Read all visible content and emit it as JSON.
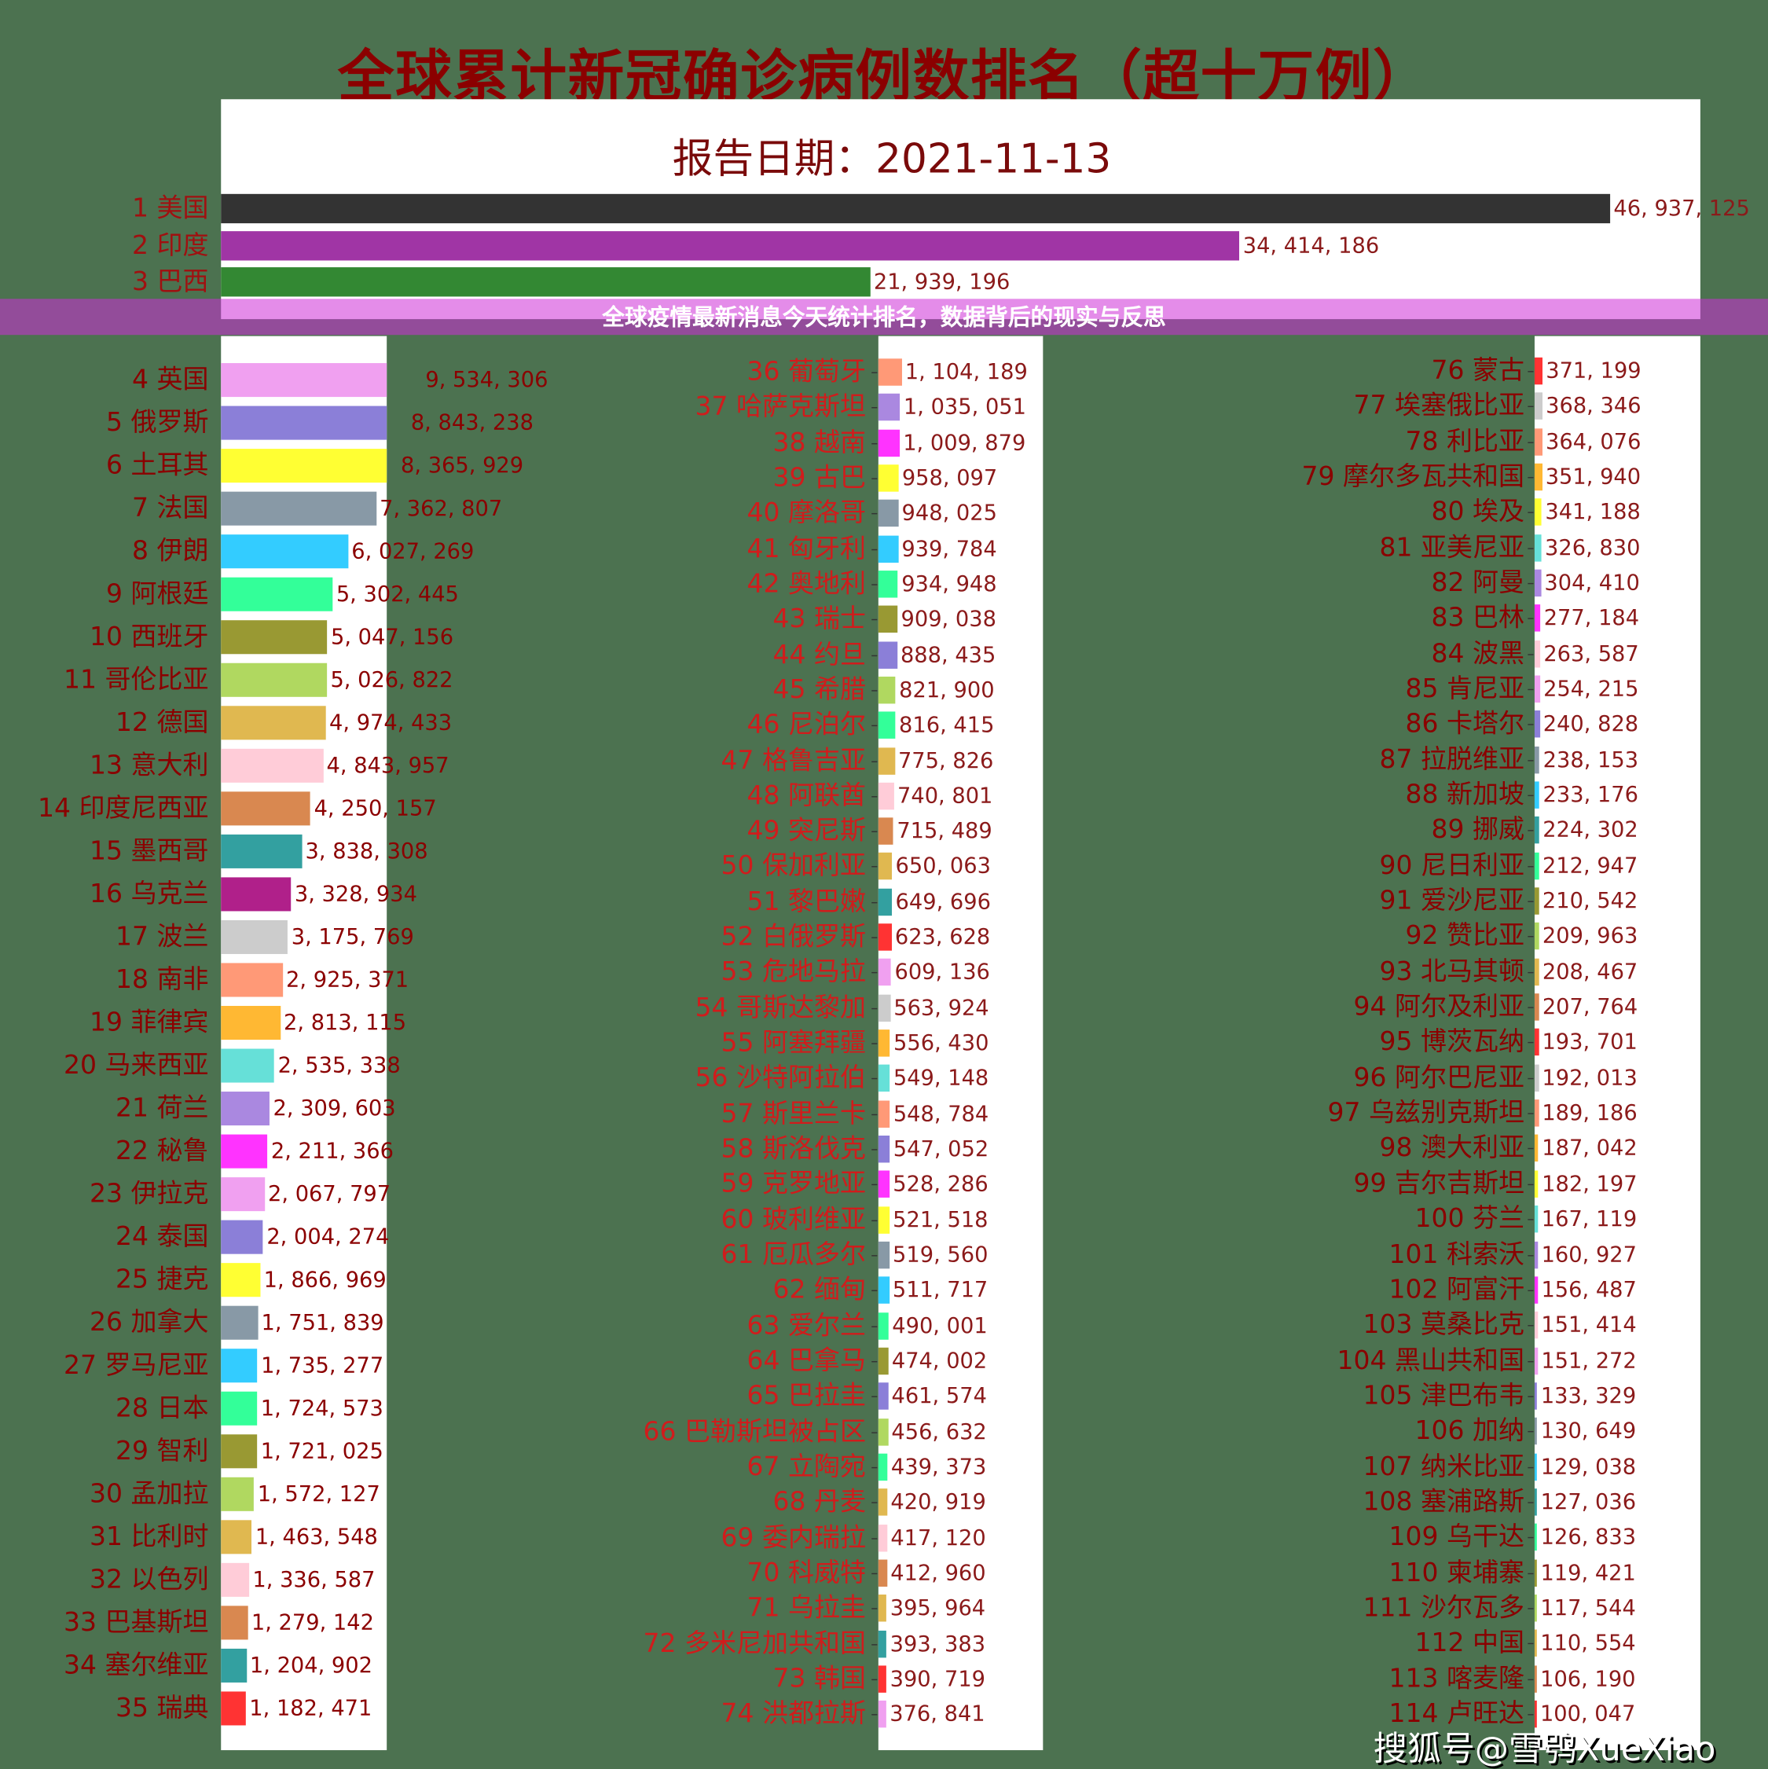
{
  "chart_data": {
    "type": "bar",
    "title": "全球累计新冠确诊病例数排名（超十万例）",
    "subtitle": "报告日期：2021-11-13",
    "orientation": "horizontal",
    "rows": [
      {
        "rank": 1,
        "name": "美国",
        "value": 46937125,
        "color": "#333333"
      },
      {
        "rank": 2,
        "name": "印度",
        "value": 34414186,
        "color": "#a035a5"
      },
      {
        "rank": 3,
        "name": "巴西",
        "value": 21939196,
        "color": "#338833"
      },
      {
        "rank": 4,
        "name": "英国",
        "value": 9534306,
        "color": "#f0a0f0"
      },
      {
        "rank": 5,
        "name": "俄罗斯",
        "value": 8843238,
        "color": "#8b7fd8"
      },
      {
        "rank": 6,
        "name": "土耳其",
        "value": 8365929,
        "color": "#ffff33"
      },
      {
        "rank": 7,
        "name": "法国",
        "value": 7362807,
        "color": "#8899a6"
      },
      {
        "rank": 8,
        "name": "伊朗",
        "value": 6027269,
        "color": "#33ccff"
      },
      {
        "rank": 9,
        "name": "阿根廷",
        "value": 5302445,
        "color": "#33ff99"
      },
      {
        "rank": 10,
        "name": "西班牙",
        "value": 5047156,
        "color": "#999933"
      },
      {
        "rank": 11,
        "name": "哥伦比亚",
        "value": 5026822,
        "color": "#b0d860"
      },
      {
        "rank": 12,
        "name": "德国",
        "value": 4974433,
        "color": "#e0b850"
      },
      {
        "rank": 13,
        "name": "意大利",
        "value": 4843957,
        "color": "#ffccd8"
      },
      {
        "rank": 14,
        "name": "印度尼西亚",
        "value": 4250157,
        "color": "#d98850"
      },
      {
        "rank": 15,
        "name": "墨西哥",
        "value": 3838308,
        "color": "#33a0a0"
      },
      {
        "rank": 16,
        "name": "乌克兰",
        "value": 3328934,
        "color": "#b0208a"
      },
      {
        "rank": 17,
        "name": "波兰",
        "value": 3175769,
        "color": "#cccccc"
      },
      {
        "rank": 18,
        "name": "南非",
        "value": 2925371,
        "color": "#ff9977"
      },
      {
        "rank": 19,
        "name": "菲律宾",
        "value": 2813115,
        "color": "#ffb833"
      },
      {
        "rank": 20,
        "name": "马来西亚",
        "value": 2535338,
        "color": "#66e0d8"
      },
      {
        "rank": 21,
        "name": "荷兰",
        "value": 2309603,
        "color": "#aa88e0"
      },
      {
        "rank": 22,
        "name": "秘鲁",
        "value": 2211366,
        "color": "#ff33ff"
      },
      {
        "rank": 23,
        "name": "伊拉克",
        "value": 2067797,
        "color": "#f0a0f0"
      },
      {
        "rank": 24,
        "name": "泰国",
        "value": 2004274,
        "color": "#8b7fd8"
      },
      {
        "rank": 25,
        "name": "捷克",
        "value": 1866969,
        "color": "#ffff33"
      },
      {
        "rank": 26,
        "name": "加拿大",
        "value": 1751839,
        "color": "#8899a6"
      },
      {
        "rank": 27,
        "name": "罗马尼亚",
        "value": 1735277,
        "color": "#33ccff"
      },
      {
        "rank": 28,
        "name": "日本",
        "value": 1724573,
        "color": "#33ff99"
      },
      {
        "rank": 29,
        "name": "智利",
        "value": 1721025,
        "color": "#999933"
      },
      {
        "rank": 30,
        "name": "孟加拉",
        "value": 1572127,
        "color": "#b0d860"
      },
      {
        "rank": 31,
        "name": "比利时",
        "value": 1463548,
        "color": "#e0b850"
      },
      {
        "rank": 32,
        "name": "以色列",
        "value": 1336587,
        "color": "#ffccd8"
      },
      {
        "rank": 33,
        "name": "巴基斯坦",
        "value": 1279142,
        "color": "#d98850"
      },
      {
        "rank": 34,
        "name": "塞尔维亚",
        "value": 1204902,
        "color": "#33a0a0"
      },
      {
        "rank": 35,
        "name": "瑞典",
        "value": 1182471,
        "color": "#ff3333"
      },
      {
        "rank": 36,
        "name": "葡萄牙",
        "value": 1104189,
        "color": "#ff9977"
      },
      {
        "rank": 37,
        "name": "哈萨克斯坦",
        "value": 1035051,
        "color": "#aa88e0"
      },
      {
        "rank": 38,
        "name": "越南",
        "value": 1009879,
        "color": "#ff33ff"
      },
      {
        "rank": 39,
        "name": "古巴",
        "value": 958097,
        "color": "#ffff33"
      },
      {
        "rank": 40,
        "name": "摩洛哥",
        "value": 948025,
        "color": "#8899a6"
      },
      {
        "rank": 41,
        "name": "匈牙利",
        "value": 939784,
        "color": "#33ccff"
      },
      {
        "rank": 42,
        "name": "奥地利",
        "value": 934948,
        "color": "#33ff99"
      },
      {
        "rank": 43,
        "name": "瑞士",
        "value": 909038,
        "color": "#999933"
      },
      {
        "rank": 44,
        "name": "约旦",
        "value": 888435,
        "color": "#8b7fd8"
      },
      {
        "rank": 45,
        "name": "希腊",
        "value": 821900,
        "color": "#b0d860"
      },
      {
        "rank": 46,
        "name": "尼泊尔",
        "value": 816415,
        "color": "#33ff99"
      },
      {
        "rank": 47,
        "name": "格鲁吉亚",
        "value": 775826,
        "color": "#e0b850"
      },
      {
        "rank": 48,
        "name": "阿联酋",
        "value": 740801,
        "color": "#ffccd8"
      },
      {
        "rank": 49,
        "name": "突尼斯",
        "value": 715489,
        "color": "#d98850"
      },
      {
        "rank": 50,
        "name": "保加利亚",
        "value": 650063,
        "color": "#e0b850"
      },
      {
        "rank": 51,
        "name": "黎巴嫩",
        "value": 649696,
        "color": "#33a0a0"
      },
      {
        "rank": 52,
        "name": "白俄罗斯",
        "value": 623628,
        "color": "#ff3333"
      },
      {
        "rank": 53,
        "name": "危地马拉",
        "value": 609136,
        "color": "#f0a0f0"
      },
      {
        "rank": 54,
        "name": "哥斯达黎加",
        "value": 563924,
        "color": "#cccccc"
      },
      {
        "rank": 55,
        "name": "阿塞拜疆",
        "value": 556430,
        "color": "#ffb833"
      },
      {
        "rank": 56,
        "name": "沙特阿拉伯",
        "value": 549148,
        "color": "#66e0d8"
      },
      {
        "rank": 57,
        "name": "斯里兰卡",
        "value": 548784,
        "color": "#ff9977"
      },
      {
        "rank": 58,
        "name": "斯洛伐克",
        "value": 547052,
        "color": "#8b7fd8"
      },
      {
        "rank": 59,
        "name": "克罗地亚",
        "value": 528286,
        "color": "#ff33ff"
      },
      {
        "rank": 60,
        "name": "玻利维亚",
        "value": 521518,
        "color": "#ffff33"
      },
      {
        "rank": 61,
        "name": "厄瓜多尔",
        "value": 519560,
        "color": "#8899a6"
      },
      {
        "rank": 62,
        "name": "缅甸",
        "value": 511717,
        "color": "#33ccff"
      },
      {
        "rank": 63,
        "name": "爱尔兰",
        "value": 490001,
        "color": "#33ff99"
      },
      {
        "rank": 64,
        "name": "巴拿马",
        "value": 474002,
        "color": "#999933"
      },
      {
        "rank": 65,
        "name": "巴拉圭",
        "value": 461574,
        "color": "#8b7fd8"
      },
      {
        "rank": 66,
        "name": "巴勒斯坦被占区",
        "value": 456632,
        "color": "#b0d860"
      },
      {
        "rank": 67,
        "name": "立陶宛",
        "value": 439373,
        "color": "#33ff99"
      },
      {
        "rank": 68,
        "name": "丹麦",
        "value": 420919,
        "color": "#e0b850"
      },
      {
        "rank": 69,
        "name": "委内瑞拉",
        "value": 417120,
        "color": "#ffccd8"
      },
      {
        "rank": 70,
        "name": "科威特",
        "value": 412960,
        "color": "#d98850"
      },
      {
        "rank": 71,
        "name": "乌拉圭",
        "value": 395964,
        "color": "#e0b850"
      },
      {
        "rank": 72,
        "name": "多米尼加共和国",
        "value": 393383,
        "color": "#33a0a0"
      },
      {
        "rank": 73,
        "name": "韩国",
        "value": 390719,
        "color": "#ff3333"
      },
      {
        "rank": 74,
        "name": "洪都拉斯",
        "value": 376841,
        "color": "#f0a0f0"
      },
      {
        "rank": 76,
        "name": "蒙古",
        "value": 371199,
        "color": "#ff3333"
      },
      {
        "rank": 77,
        "name": "埃塞俄比亚",
        "value": 368346,
        "color": "#cccccc"
      },
      {
        "rank": 78,
        "name": "利比亚",
        "value": 364076,
        "color": "#ff9977"
      },
      {
        "rank": 79,
        "name": "摩尔多瓦共和国",
        "value": 351940,
        "color": "#ffb833"
      },
      {
        "rank": 80,
        "name": "埃及",
        "value": 341188,
        "color": "#ffff33"
      },
      {
        "rank": 81,
        "name": "亚美尼亚",
        "value": 326830,
        "color": "#66e0d8"
      },
      {
        "rank": 82,
        "name": "阿曼",
        "value": 304410,
        "color": "#aa88e0"
      },
      {
        "rank": 83,
        "name": "巴林",
        "value": 277184,
        "color": "#ff33ff"
      },
      {
        "rank": 84,
        "name": "波黑",
        "value": 263587,
        "color": "#ffccd8"
      },
      {
        "rank": 85,
        "name": "肯尼亚",
        "value": 254215,
        "color": "#f0a0f0"
      },
      {
        "rank": 86,
        "name": "卡塔尔",
        "value": 240828,
        "color": "#8b7fd8"
      },
      {
        "rank": 87,
        "name": "拉脱维亚",
        "value": 238153,
        "color": "#8899a6"
      },
      {
        "rank": 88,
        "name": "新加坡",
        "value": 233176,
        "color": "#33ccff"
      },
      {
        "rank": 89,
        "name": "挪威",
        "value": 224302,
        "color": "#33a0a0"
      },
      {
        "rank": 90,
        "name": "尼日利亚",
        "value": 212947,
        "color": "#33ff99"
      },
      {
        "rank": 91,
        "name": "爱沙尼亚",
        "value": 210542,
        "color": "#999933"
      },
      {
        "rank": 92,
        "name": "赞比亚",
        "value": 209963,
        "color": "#b0d860"
      },
      {
        "rank": 93,
        "name": "北马其顿",
        "value": 208467,
        "color": "#e0b850"
      },
      {
        "rank": 94,
        "name": "阿尔及利亚",
        "value": 207764,
        "color": "#d98850"
      },
      {
        "rank": 95,
        "name": "博茨瓦纳",
        "value": 193701,
        "color": "#ff3333"
      },
      {
        "rank": 96,
        "name": "阿尔巴尼亚",
        "value": 192013,
        "color": "#cccccc"
      },
      {
        "rank": 97,
        "name": "乌兹别克斯坦",
        "value": 189186,
        "color": "#ff9977"
      },
      {
        "rank": 98,
        "name": "澳大利亚",
        "value": 187042,
        "color": "#ffb833"
      },
      {
        "rank": 99,
        "name": "吉尔吉斯坦",
        "value": 182197,
        "color": "#ffff33"
      },
      {
        "rank": 100,
        "name": "芬兰",
        "value": 167119,
        "color": "#66e0d8"
      },
      {
        "rank": 101,
        "name": "科索沃",
        "value": 160927,
        "color": "#aa88e0"
      },
      {
        "rank": 102,
        "name": "阿富汗",
        "value": 156487,
        "color": "#ff33ff"
      },
      {
        "rank": 103,
        "name": "莫桑比克",
        "value": 151414,
        "color": "#ffccd8"
      },
      {
        "rank": 104,
        "name": "黑山共和国",
        "value": 151272,
        "color": "#f0a0f0"
      },
      {
        "rank": 105,
        "name": "津巴布韦",
        "value": 133329,
        "color": "#8b7fd8"
      },
      {
        "rank": 106,
        "name": "加纳",
        "value": 130649,
        "color": "#8899a6"
      },
      {
        "rank": 107,
        "name": "纳米比亚",
        "value": 129038,
        "color": "#33ccff"
      },
      {
        "rank": 108,
        "name": "塞浦路斯",
        "value": 127036,
        "color": "#33a0a0"
      },
      {
        "rank": 109,
        "name": "乌干达",
        "value": 126833,
        "color": "#33ff99"
      },
      {
        "rank": 110,
        "name": "柬埔寨",
        "value": 119421,
        "color": "#999933"
      },
      {
        "rank": 111,
        "name": "沙尔瓦多",
        "value": 117544,
        "color": "#b0d860"
      },
      {
        "rank": 112,
        "name": "中国",
        "value": 110554,
        "color": "#e0b850"
      },
      {
        "rank": 113,
        "name": "喀麦隆",
        "value": 106190,
        "color": "#d98850"
      },
      {
        "rank": 114,
        "name": "卢旺达",
        "value": 100047,
        "color": "#ff3333"
      }
    ],
    "colors": {
      "background": "#4c7250",
      "title": "#8b0000",
      "label": "#8b0000",
      "label_mid": "#d01c1c"
    }
  },
  "banner": {
    "text": "全球疫情最新消息今天统计排名，数据背后的现实与反思"
  },
  "watermark": {
    "text": "搜狐号@雪鸮XueXiao"
  }
}
